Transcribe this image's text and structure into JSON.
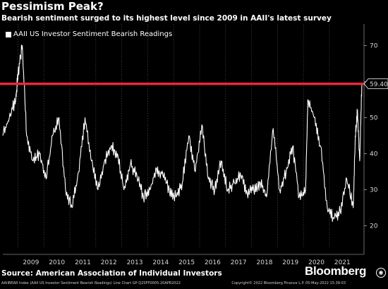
{
  "header": {
    "title": "Pessimism Peak?",
    "subtitle": "Bearish sentiment surged to its highest level since 2009 in AAII's latest survey"
  },
  "source": "Source: American Association of Individual Investors",
  "brand": "Bloomberg",
  "footer": {
    "left": "AAIIBEAR Index (AAII US Investor Sentiment Bearish Readings) Line Chart  GP  Q2SFP0005-20APR2022",
    "right": "Copyright© 2022 Bloomberg Finance L.P.        05-May-2022 15:39:03"
  },
  "colors": {
    "line": "#ffffff",
    "reference": "#e8283c",
    "background": "#000000",
    "grid": "#555555"
  },
  "chart_data": {
    "type": "line",
    "title": "Pessimism Peak?",
    "subtitle": "Bearish sentiment surged to its highest level since 2009 in AAII's latest survey",
    "legend": "top-left",
    "grid": true,
    "ylim": [
      14,
      76
    ],
    "yticks": [
      20,
      30,
      40,
      50,
      60,
      70
    ],
    "xlim": [
      "2008-06",
      "2022-05"
    ],
    "xticks": [
      "2009",
      "2010",
      "2011",
      "2012",
      "2013",
      "2014",
      "2015",
      "2016",
      "2017",
      "2018",
      "2019",
      "2020",
      "2021"
    ],
    "reference_line": {
      "value": 59.4,
      "label": "59.40",
      "color": "#e8283c"
    },
    "series": [
      {
        "name": "AAII US Investor Sentiment Bearish Readings",
        "x": [
          "2008-06",
          "2008-09",
          "2008-12",
          "2009-01",
          "2009-03",
          "2009-05",
          "2009-08",
          "2009-11",
          "2010-02",
          "2010-05",
          "2010-08",
          "2010-11",
          "2011-02",
          "2011-05",
          "2011-08",
          "2011-11",
          "2012-02",
          "2012-05",
          "2012-08",
          "2012-11",
          "2013-02",
          "2013-05",
          "2013-08",
          "2013-11",
          "2014-02",
          "2014-05",
          "2014-08",
          "2014-11",
          "2015-02",
          "2015-05",
          "2015-08",
          "2015-11",
          "2016-02",
          "2016-05",
          "2016-08",
          "2016-11",
          "2017-02",
          "2017-05",
          "2017-08",
          "2017-11",
          "2018-02",
          "2018-05",
          "2018-08",
          "2018-11",
          "2019-02",
          "2019-05",
          "2019-08",
          "2019-11",
          "2020-02",
          "2020-03",
          "2020-06",
          "2020-09",
          "2020-12",
          "2021-03",
          "2021-06",
          "2021-09",
          "2021-12",
          "2022-01",
          "2022-02",
          "2022-03",
          "2022-04"
        ],
        "values": [
          45,
          50,
          55,
          62,
          70,
          45,
          38,
          40,
          33,
          45,
          50,
          30,
          25,
          35,
          50,
          38,
          30,
          38,
          42,
          40,
          30,
          37,
          34,
          28,
          30,
          36,
          34,
          30,
          28,
          32,
          45,
          35,
          48,
          33,
          30,
          38,
          30,
          32,
          34,
          29,
          30,
          32,
          28,
          47,
          30,
          35,
          42,
          28,
          30,
          55,
          50,
          42,
          25,
          22,
          24,
          33,
          25,
          45,
          52,
          38,
          59.4
        ]
      }
    ]
  }
}
